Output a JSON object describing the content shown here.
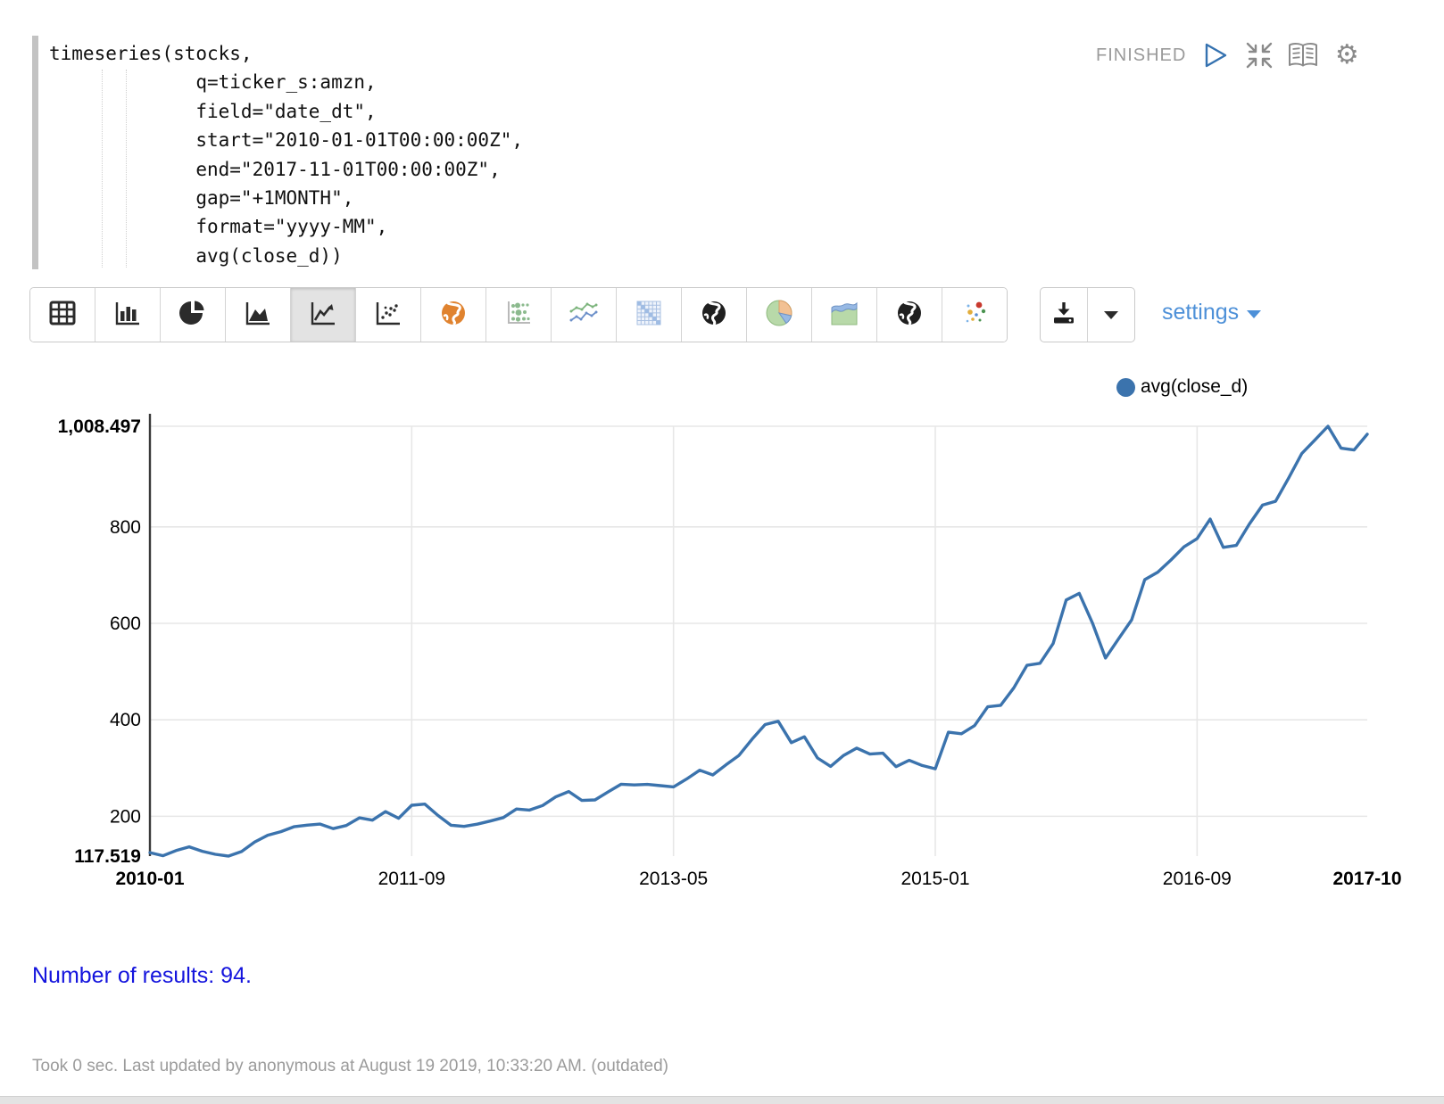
{
  "paragraph": {
    "status": "FINISHED",
    "controls": [
      "run",
      "collapse",
      "toggle-editor",
      "settings"
    ],
    "code": {
      "lines": [
        "timeseries(stocks,",
        "             q=ticker_s:amzn,",
        "             field=\"date_dt\",",
        "             start=\"2010-01-01T00:00:00Z\",",
        "             end=\"2017-11-01T00:00:00Z\",",
        "             gap=\"+1MONTH\",",
        "             format=\"yyyy-MM\",",
        "             avg(close_d))"
      ]
    }
  },
  "toolbar": {
    "chart_buttons": [
      {
        "name": "table",
        "selected": false
      },
      {
        "name": "bar-chart",
        "selected": false
      },
      {
        "name": "pie-chart",
        "selected": false
      },
      {
        "name": "area-chart",
        "selected": false
      },
      {
        "name": "line-chart",
        "selected": true
      },
      {
        "name": "scatter-chart",
        "selected": false
      },
      {
        "name": "globe-orange",
        "selected": false
      },
      {
        "name": "bubble-chart",
        "selected": false
      },
      {
        "name": "multi-line-chart",
        "selected": false
      },
      {
        "name": "heatmap",
        "selected": false
      },
      {
        "name": "globe-dark",
        "selected": false
      },
      {
        "name": "pie-chart-color",
        "selected": false
      },
      {
        "name": "area-chart-color",
        "selected": false
      },
      {
        "name": "globe-dark-2",
        "selected": false
      },
      {
        "name": "scatter-color",
        "selected": false
      }
    ],
    "settings_label": "settings"
  },
  "legend": {
    "label": "avg(close_d)",
    "color": "#3b73ad"
  },
  "chart_data": {
    "type": "line",
    "title": "",
    "xlabel": "",
    "ylabel": "",
    "ylim": [
      117.519,
      1008.497
    ],
    "y_top_label": "1,008.497",
    "y_bottom_label": "117.519",
    "y_ticks": [
      800,
      600,
      400,
      200
    ],
    "x_tick_indices": [
      0,
      20,
      40,
      60,
      80,
      93
    ],
    "grid": true,
    "legend_position": "top-right",
    "categories": [
      "2010-01",
      "2010-02",
      "2010-03",
      "2010-04",
      "2010-05",
      "2010-06",
      "2010-07",
      "2010-08",
      "2010-09",
      "2010-10",
      "2010-11",
      "2010-12",
      "2011-01",
      "2011-02",
      "2011-03",
      "2011-04",
      "2011-05",
      "2011-06",
      "2011-07",
      "2011-08",
      "2011-09",
      "2011-10",
      "2011-11",
      "2011-12",
      "2012-01",
      "2012-02",
      "2012-03",
      "2012-04",
      "2012-05",
      "2012-06",
      "2012-07",
      "2012-08",
      "2012-09",
      "2012-10",
      "2012-11",
      "2012-12",
      "2013-01",
      "2013-02",
      "2013-03",
      "2013-04",
      "2013-05",
      "2013-06",
      "2013-07",
      "2013-08",
      "2013-09",
      "2013-10",
      "2013-11",
      "2013-12",
      "2014-01",
      "2014-02",
      "2014-03",
      "2014-04",
      "2014-05",
      "2014-06",
      "2014-07",
      "2014-08",
      "2014-09",
      "2014-10",
      "2014-11",
      "2014-12",
      "2015-01",
      "2015-02",
      "2015-03",
      "2015-04",
      "2015-05",
      "2015-06",
      "2015-07",
      "2015-08",
      "2015-09",
      "2015-10",
      "2015-11",
      "2015-12",
      "2016-01",
      "2016-02",
      "2016-03",
      "2016-04",
      "2016-05",
      "2016-06",
      "2016-07",
      "2016-08",
      "2016-09",
      "2016-10",
      "2016-11",
      "2016-12",
      "2017-01",
      "2017-02",
      "2017-03",
      "2017-04",
      "2017-05",
      "2017-06",
      "2017-07",
      "2017-08",
      "2017-09",
      "2017-10"
    ],
    "series": [
      {
        "name": "avg(close_d)",
        "color": "#3b73ad",
        "values": [
          124.8,
          118.2,
          128.9,
          136.8,
          127.5,
          121.2,
          117.519,
          126.9,
          146.6,
          160.7,
          168.1,
          178.4,
          181.7,
          183.9,
          174.4,
          181.0,
          196.9,
          192.1,
          209.7,
          195.9,
          222.9,
          225.2,
          201.9,
          181.5,
          179.0,
          183.7,
          190.1,
          197.3,
          215.1,
          212.9,
          222.4,
          240.2,
          251.4,
          232.9,
          234.0,
          250.4,
          266.6,
          265.1,
          266.2,
          263.5,
          261.0,
          277.3,
          295.6,
          285.7,
          306.4,
          326.2,
          359.9,
          390.2,
          397.0,
          352.6,
          364.8,
          320.8,
          303.5,
          326.3,
          341.3,
          329.0,
          330.8,
          302.9,
          316.1,
          305.4,
          298.4,
          374.3,
          371.1,
          388.0,
          426.9,
          430.1,
          466.3,
          513.0,
          517.1,
          558.0,
          648.5,
          662.1,
          601.1,
          528.0,
          567.8,
          607.2,
          690.5,
          706.0,
          731.2,
          758.6,
          775.4,
          816.1,
          757.5,
          761.6,
          806.0,
          845.1,
          853.0,
          901.5,
          952.1,
          980.0,
          1008.497,
          963.0,
          959.3,
          992.0
        ]
      }
    ]
  },
  "results": {
    "text": "Number of results: 94."
  },
  "footer": {
    "text": "Took 0 sec. Last updated by anonymous at August 19 2019, 10:33:20 AM. (outdated)"
  }
}
